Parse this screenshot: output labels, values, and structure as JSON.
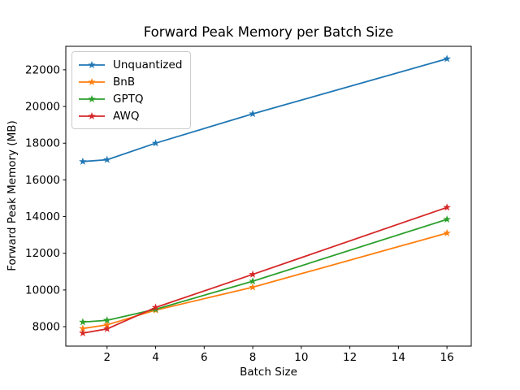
{
  "chart_data": {
    "type": "line",
    "title": "Forward Peak Memory per Batch Size",
    "xlabel": "Batch Size",
    "ylabel": "Forward Peak Memory (MB)",
    "x": [
      1,
      2,
      4,
      8,
      16
    ],
    "series": [
      {
        "name": "Unquantized",
        "color": "#1f77b4",
        "marker": "star",
        "values": [
          17000,
          17100,
          18000,
          19600,
          22600
        ]
      },
      {
        "name": "BnB",
        "color": "#ff7f0e",
        "marker": "star",
        "values": [
          7900,
          8100,
          8900,
          10150,
          13100
        ]
      },
      {
        "name": "GPTQ",
        "color": "#2ca02c",
        "marker": "star",
        "values": [
          8250,
          8350,
          8950,
          10480,
          13850
        ]
      },
      {
        "name": "AWQ",
        "color": "#d62728",
        "marker": "star",
        "values": [
          7650,
          7880,
          9050,
          10850,
          14500
        ]
      }
    ],
    "xlim": [
      0.3,
      17.0
    ],
    "ylim": [
      6940,
      23280
    ],
    "xticks": [
      2,
      4,
      6,
      8,
      10,
      12,
      14,
      16
    ],
    "yticks": [
      8000,
      10000,
      12000,
      14000,
      16000,
      18000,
      20000,
      22000
    ],
    "grid": false,
    "legend_position": "upper left"
  }
}
